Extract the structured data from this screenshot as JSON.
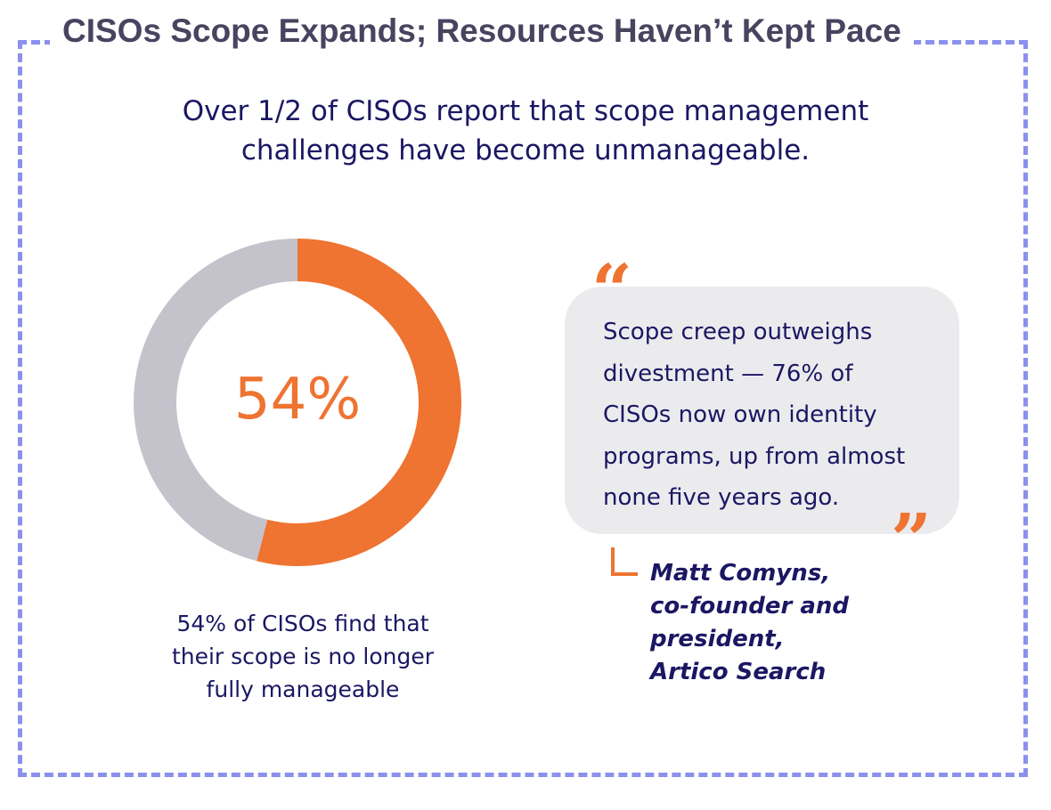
{
  "title": "CISOs Scope Expands; Resources Haven’t Kept Pace",
  "subtitle_lines": [
    "Over 1/2 of CISOs report that scope management",
    "challenges have become unmanageable."
  ],
  "chart_data": {
    "type": "pie",
    "variant": "donut",
    "categories": [
      "No longer fully manageable",
      "Other"
    ],
    "values": [
      54,
      46
    ],
    "center_label": "54%",
    "colors": [
      "#ef7331",
      "#c4c3cc"
    ],
    "caption_lines": [
      "54% of CISOs find that",
      "their scope is no longer",
      "fully manageable"
    ]
  },
  "quote": {
    "lines": [
      "Scope creep outweighs",
      "divestment — 76% of",
      "CISOs now own identity",
      "programs, up from almost",
      "none five years ago."
    ],
    "open_mark": "“",
    "close_mark": "”",
    "attribution_lines": [
      "Matt Comyns,",
      "co-founder and",
      "president,",
      "Artico Search"
    ]
  },
  "colors": {
    "accent": "#ef7331",
    "border": "#8b90ee",
    "text": "#1b1763",
    "bubble": "#ebebee"
  }
}
